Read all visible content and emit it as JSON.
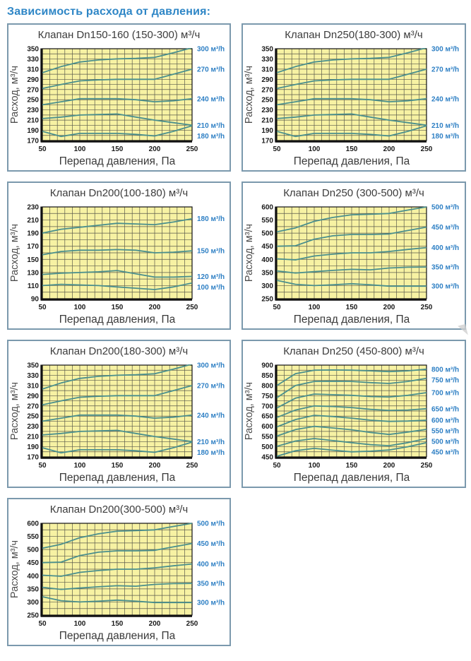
{
  "page": {
    "title": "Зависимость расхода от давления:"
  },
  "style": {
    "accent_blue": "#2e86c6",
    "series_label_blue": "#2d7fc4",
    "plot_bg": "#f7f2a3",
    "line_teal": "#4a8f8d",
    "grid": "#5a5a4c",
    "axis_black": "#111111",
    "tick_text": "#1a1a1a",
    "axis_title_gray": "#4d4d4d",
    "card_border": "#7b99ad"
  },
  "chart_data": [
    {
      "type": "line",
      "title": "Клапан Dn150-160 (150-300) м³/ч",
      "xlabel": "Перепад давления, Па",
      "ylabel": "Расход, м³/ч",
      "xlim": [
        50,
        250
      ],
      "ylim": [
        170,
        350
      ],
      "xticks": [
        50,
        100,
        150,
        200,
        250
      ],
      "ytick_step": 20,
      "x_grid_step": 10,
      "y_grid_step": 10,
      "legend_position": "right",
      "x": [
        50,
        75,
        100,
        125,
        150,
        175,
        200,
        225,
        250
      ],
      "series": [
        {
          "name": "300 м³/h",
          "values": [
            303,
            315,
            324,
            328,
            330,
            331,
            333,
            342,
            352
          ]
        },
        {
          "name": "270 м³/h",
          "values": [
            272,
            280,
            287,
            289,
            290,
            290,
            290,
            300,
            310
          ]
        },
        {
          "name": "240 м³/h",
          "values": [
            240,
            246,
            252,
            252,
            252,
            250,
            246,
            248,
            252
          ]
        },
        {
          "name": "210 м³/h",
          "values": [
            213,
            216,
            220,
            221,
            222,
            216,
            210,
            205,
            200
          ]
        },
        {
          "name": "180 м³/h",
          "values": [
            188,
            178,
            184,
            184,
            184,
            182,
            179,
            188,
            199
          ]
        }
      ]
    },
    {
      "type": "line",
      "title": "Клапан Dn250(180-300) м³/ч",
      "xlabel": "Перепад давления, Па",
      "ylabel": "Расход, м³/ч",
      "xlim": [
        50,
        250
      ],
      "ylim": [
        170,
        350
      ],
      "xticks": [
        50,
        100,
        150,
        200,
        250
      ],
      "ytick_step": 20,
      "x_grid_step": 10,
      "y_grid_step": 10,
      "legend_position": "right",
      "x": [
        50,
        75,
        100,
        125,
        150,
        175,
        200,
        225,
        250
      ],
      "series": [
        {
          "name": "300 м³/h",
          "values": [
            303,
            315,
            324,
            328,
            330,
            331,
            333,
            342,
            352
          ]
        },
        {
          "name": "270 м³/h",
          "values": [
            272,
            280,
            287,
            289,
            290,
            290,
            290,
            300,
            310
          ]
        },
        {
          "name": "240 м³/h",
          "values": [
            240,
            246,
            252,
            252,
            252,
            250,
            246,
            248,
            252
          ]
        },
        {
          "name": "210 м³/h",
          "values": [
            213,
            216,
            220,
            221,
            222,
            216,
            210,
            205,
            200
          ]
        },
        {
          "name": "180 м³/h",
          "values": [
            188,
            178,
            184,
            184,
            184,
            182,
            179,
            188,
            199
          ]
        }
      ]
    },
    {
      "type": "line",
      "title": "Клапан Dn200(100-180) м³/ч",
      "xlabel": "Перепад давления, Па",
      "ylabel": "Расход, м³/ч",
      "xlim": [
        50,
        250
      ],
      "ylim": [
        90,
        230
      ],
      "xticks": [
        50,
        100,
        150,
        200,
        250
      ],
      "ytick_step": 20,
      "x_grid_step": 10,
      "y_grid_step": 10,
      "legend_position": "right",
      "x": [
        50,
        75,
        100,
        125,
        150,
        175,
        200,
        225,
        250
      ],
      "series": [
        {
          "name": "180 м³/h",
          "values": [
            190,
            196,
            199,
            202,
            205,
            204,
            203,
            207,
            212
          ]
        },
        {
          "name": "150 м³/h",
          "values": [
            157,
            162,
            164,
            164,
            165,
            164,
            160,
            161,
            163
          ]
        },
        {
          "name": "120 м³/h",
          "values": [
            127,
            129,
            130,
            131,
            133,
            128,
            123,
            123,
            124
          ]
        },
        {
          "name": "100 м³/h",
          "values": [
            110,
            112,
            111,
            110,
            108,
            106,
            104,
            108,
            114
          ]
        }
      ]
    },
    {
      "type": "line",
      "title": "Клапан Dn250 (300-500) м³/ч",
      "xlabel": "Перепад давления, Па",
      "ylabel": "Расход, м³/ч",
      "xlim": [
        50,
        250
      ],
      "ylim": [
        250,
        600
      ],
      "xticks": [
        50,
        100,
        150,
        200,
        250
      ],
      "ytick_step": 50,
      "x_grid_step": 10,
      "y_grid_step": 25,
      "legend_position": "right",
      "x": [
        50,
        75,
        100,
        125,
        150,
        175,
        200,
        225,
        250
      ],
      "series": [
        {
          "name": "500 м³/h",
          "values": [
            505,
            520,
            545,
            560,
            570,
            572,
            575,
            588,
            600
          ]
        },
        {
          "name": "450 м³/h",
          "values": [
            450,
            452,
            477,
            490,
            495,
            495,
            497,
            510,
            523
          ]
        },
        {
          "name": "400 м³/h",
          "values": [
            402,
            398,
            413,
            420,
            425,
            425,
            430,
            438,
            445
          ]
        },
        {
          "name": "350 м³/h",
          "values": [
            356,
            348,
            353,
            358,
            362,
            360,
            367,
            370,
            371
          ]
        },
        {
          "name": "300 м³/h",
          "values": [
            320,
            305,
            300,
            303,
            307,
            303,
            298,
            298,
            298
          ]
        }
      ]
    },
    {
      "type": "line",
      "title": "Клапан Dn200(180-300) м³/ч",
      "xlabel": "Перепад давления, Па",
      "ylabel": "Расход, м³/ч",
      "xlim": [
        50,
        250
      ],
      "ylim": [
        170,
        350
      ],
      "xticks": [
        50,
        100,
        150,
        200,
        250
      ],
      "ytick_step": 20,
      "x_grid_step": 10,
      "y_grid_step": 10,
      "legend_position": "right",
      "x": [
        50,
        75,
        100,
        125,
        150,
        175,
        200,
        225,
        250
      ],
      "series": [
        {
          "name": "300 м³/h",
          "values": [
            303,
            315,
            324,
            328,
            330,
            331,
            333,
            342,
            352
          ]
        },
        {
          "name": "270 м³/h",
          "values": [
            272,
            280,
            287,
            289,
            290,
            290,
            290,
            300,
            310
          ]
        },
        {
          "name": "240 м³/h",
          "values": [
            240,
            246,
            252,
            252,
            252,
            250,
            246,
            248,
            252
          ]
        },
        {
          "name": "210 м³/h",
          "values": [
            213,
            216,
            220,
            221,
            222,
            216,
            210,
            205,
            200
          ]
        },
        {
          "name": "180 м³/h",
          "values": [
            188,
            178,
            184,
            184,
            184,
            182,
            179,
            188,
            199
          ]
        }
      ]
    },
    {
      "type": "line",
      "title": "Клапан Dn250 (450-800) м³/ч",
      "xlabel": "Перепад давления, Па",
      "ylabel": "Расход, м³/ч",
      "xlim": [
        50,
        250
      ],
      "ylim": [
        450,
        900
      ],
      "xticks": [
        50,
        100,
        150,
        200,
        250
      ],
      "ytick_step": 50,
      "x_grid_step": 10,
      "y_grid_step": 25,
      "legend_position": "right",
      "x": [
        50,
        75,
        100,
        125,
        150,
        175,
        200,
        225,
        250
      ],
      "series": [
        {
          "name": "800 м³/h",
          "values": [
            800,
            858,
            875,
            876,
            875,
            872,
            868,
            872,
            880
          ]
        },
        {
          "name": "750 м³/h",
          "values": [
            740,
            800,
            820,
            821,
            820,
            814,
            810,
            820,
            835
          ]
        },
        {
          "name": "700 м³/h",
          "values": [
            690,
            738,
            758,
            755,
            752,
            746,
            744,
            752,
            765
          ]
        },
        {
          "name": "650 м³/h",
          "values": [
            643,
            680,
            700,
            697,
            692,
            683,
            678,
            680,
            686
          ]
        },
        {
          "name": "600 м³/h",
          "values": [
            597,
            633,
            654,
            648,
            640,
            630,
            624,
            626,
            630
          ]
        },
        {
          "name": "550 м³/h",
          "values": [
            552,
            584,
            600,
            592,
            583,
            570,
            560,
            572,
            585
          ]
        },
        {
          "name": "500 м³/h",
          "values": [
            502,
            528,
            540,
            530,
            520,
            510,
            505,
            520,
            540
          ]
        },
        {
          "name": "450 м³/h",
          "values": [
            453,
            480,
            492,
            483,
            475,
            478,
            484,
            500,
            520
          ]
        }
      ]
    },
    {
      "type": "line",
      "title": "Клапан Dn200(300-500) м³/ч",
      "xlabel": "Перепад давления, Па",
      "ylabel": "Расход, м³/ч",
      "xlim": [
        50,
        250
      ],
      "ylim": [
        250,
        600
      ],
      "xticks": [
        50,
        100,
        150,
        200,
        250
      ],
      "ytick_step": 50,
      "x_grid_step": 10,
      "y_grid_step": 25,
      "legend_position": "right",
      "x": [
        50,
        75,
        100,
        125,
        150,
        175,
        200,
        225,
        250
      ],
      "series": [
        {
          "name": "500 м³/h",
          "values": [
            505,
            520,
            545,
            560,
            570,
            572,
            575,
            588,
            600
          ]
        },
        {
          "name": "450 м³/h",
          "values": [
            450,
            452,
            477,
            490,
            495,
            495,
            497,
            510,
            523
          ]
        },
        {
          "name": "400 м³/h",
          "values": [
            402,
            398,
            413,
            420,
            425,
            425,
            430,
            438,
            445
          ]
        },
        {
          "name": "350 м³/h",
          "values": [
            356,
            348,
            353,
            358,
            362,
            360,
            367,
            370,
            371
          ]
        },
        {
          "name": "300 м³/h",
          "values": [
            320,
            305,
            300,
            303,
            307,
            303,
            298,
            298,
            298
          ]
        }
      ]
    }
  ]
}
